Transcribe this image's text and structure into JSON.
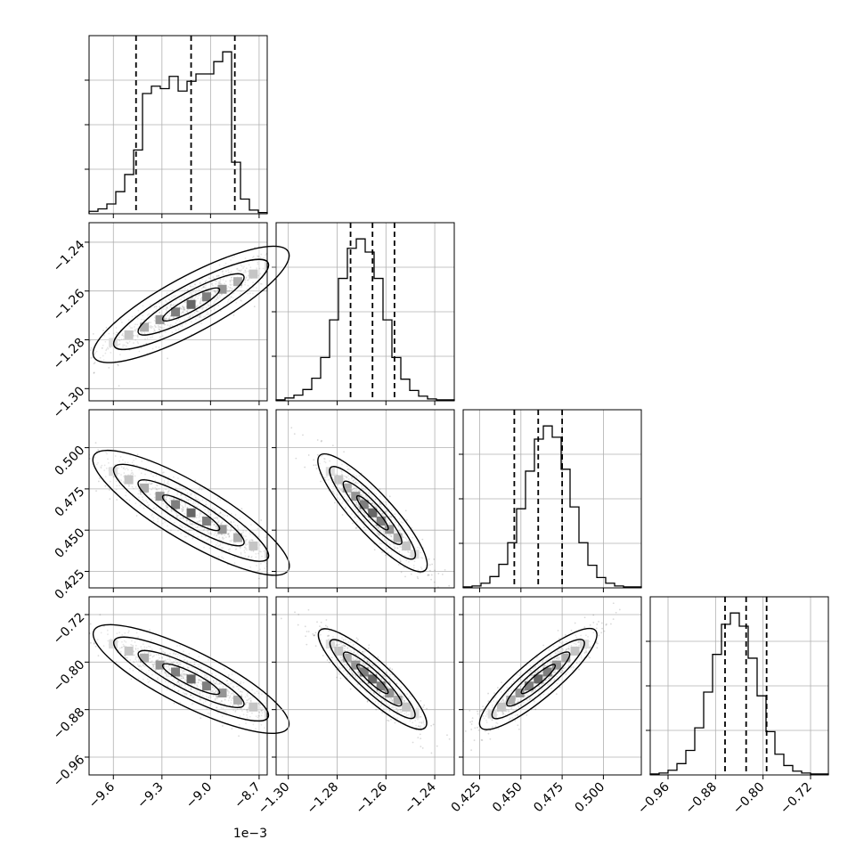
{
  "chart_data": {
    "type": "corner",
    "grid": true,
    "colors": {
      "axes": "#000000",
      "grid": "#b0b0b0",
      "points": "#000000",
      "hist": "#000000",
      "quantile": "#000000"
    },
    "parameters": [
      {
        "range": [
          -9.75,
          -8.65
        ],
        "ticks": [
          -9.6,
          -9.3,
          -9.0,
          -8.7
        ],
        "tick_labels": [
          "−9.6",
          "−9.3",
          "−9.0",
          "−8.7"
        ],
        "offset_text": "1e−3",
        "quantiles": [
          -9.46,
          -9.12,
          -8.85
        ],
        "mean": -9.12,
        "sd": 0.25
      },
      {
        "range": [
          -1.305,
          -1.232
        ],
        "ticks": [
          -1.3,
          -1.28,
          -1.26,
          -1.24
        ],
        "tick_labels": [
          "−1.30",
          "−1.28",
          "−1.26",
          "−1.24"
        ],
        "quantiles": [
          -1.2745,
          -1.2655,
          -1.2565
        ],
        "mean": -1.2655,
        "sd": 0.009
      },
      {
        "range": [
          0.415,
          0.523
        ],
        "ticks": [
          0.425,
          0.45,
          0.475,
          0.5
        ],
        "tick_labels": [
          "0.425",
          "0.450",
          "0.475",
          "0.500"
        ],
        "quantiles": [
          0.446,
          0.4605,
          0.475
        ],
        "mean": 0.4605,
        "sd": 0.0145
      },
      {
        "range": [
          -0.99,
          -0.69
        ],
        "ticks": [
          -0.96,
          -0.88,
          -0.8,
          -0.72
        ],
        "tick_labels": [
          "−0.96",
          "−0.88",
          "−0.80",
          "−0.72"
        ],
        "quantiles": [
          -0.864,
          -0.8285,
          -0.794
        ],
        "mean": -0.8285,
        "sd": 0.034
      }
    ],
    "histograms": [
      {
        "param": 0,
        "counts": [
          2,
          4,
          8,
          18,
          32,
          52,
          98,
          104,
          102,
          112,
          100,
          108,
          114,
          114,
          124,
          132,
          42,
          12,
          3,
          1
        ]
      },
      {
        "param": 1,
        "counts": [
          1,
          3,
          6,
          12,
          24,
          46,
          86,
          130,
          162,
          172,
          158,
          130,
          86,
          46,
          23,
          11,
          5,
          2,
          1,
          1
        ]
      },
      {
        "param": 2,
        "counts": [
          1,
          2,
          5,
          12,
          25,
          48,
          84,
          124,
          158,
          172,
          160,
          126,
          86,
          48,
          24,
          11,
          5,
          2,
          1,
          1
        ]
      },
      {
        "param": 3,
        "counts": [
          1,
          2,
          5,
          12,
          26,
          50,
          88,
          128,
          160,
          172,
          158,
          124,
          84,
          46,
          22,
          10,
          4,
          2,
          1,
          1
        ]
      }
    ],
    "pairs": [
      {
        "x": 0,
        "y": 1,
        "density_orientation": "positive"
      },
      {
        "x": 0,
        "y": 2,
        "density_orientation": "negative"
      },
      {
        "x": 1,
        "y": 2,
        "density_orientation": "negative"
      },
      {
        "x": 0,
        "y": 3,
        "density_orientation": "negative"
      },
      {
        "x": 1,
        "y": 3,
        "density_orientation": "negative"
      },
      {
        "x": 2,
        "y": 3,
        "density_orientation": "positive"
      }
    ]
  }
}
